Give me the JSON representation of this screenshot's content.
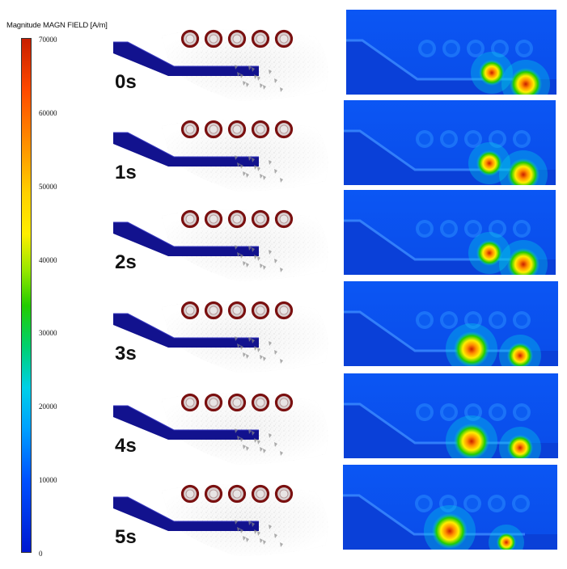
{
  "colorbar": {
    "title": "Magnitude MAGN FIELD [A/m]",
    "ticks": [
      "70000",
      "60000",
      "50000",
      "40000",
      "30000",
      "20000",
      "10000",
      "0"
    ],
    "colors": [
      "#c81e00",
      "#ff8c00",
      "#ffee00",
      "#22cc00",
      "#00d0e8",
      "#0050ff",
      "#0010c0"
    ]
  },
  "frames": [
    {
      "time": "0s"
    },
    {
      "time": "1s"
    },
    {
      "time": "2s"
    },
    {
      "time": "3s"
    },
    {
      "time": "4s"
    },
    {
      "time": "5s"
    }
  ]
}
